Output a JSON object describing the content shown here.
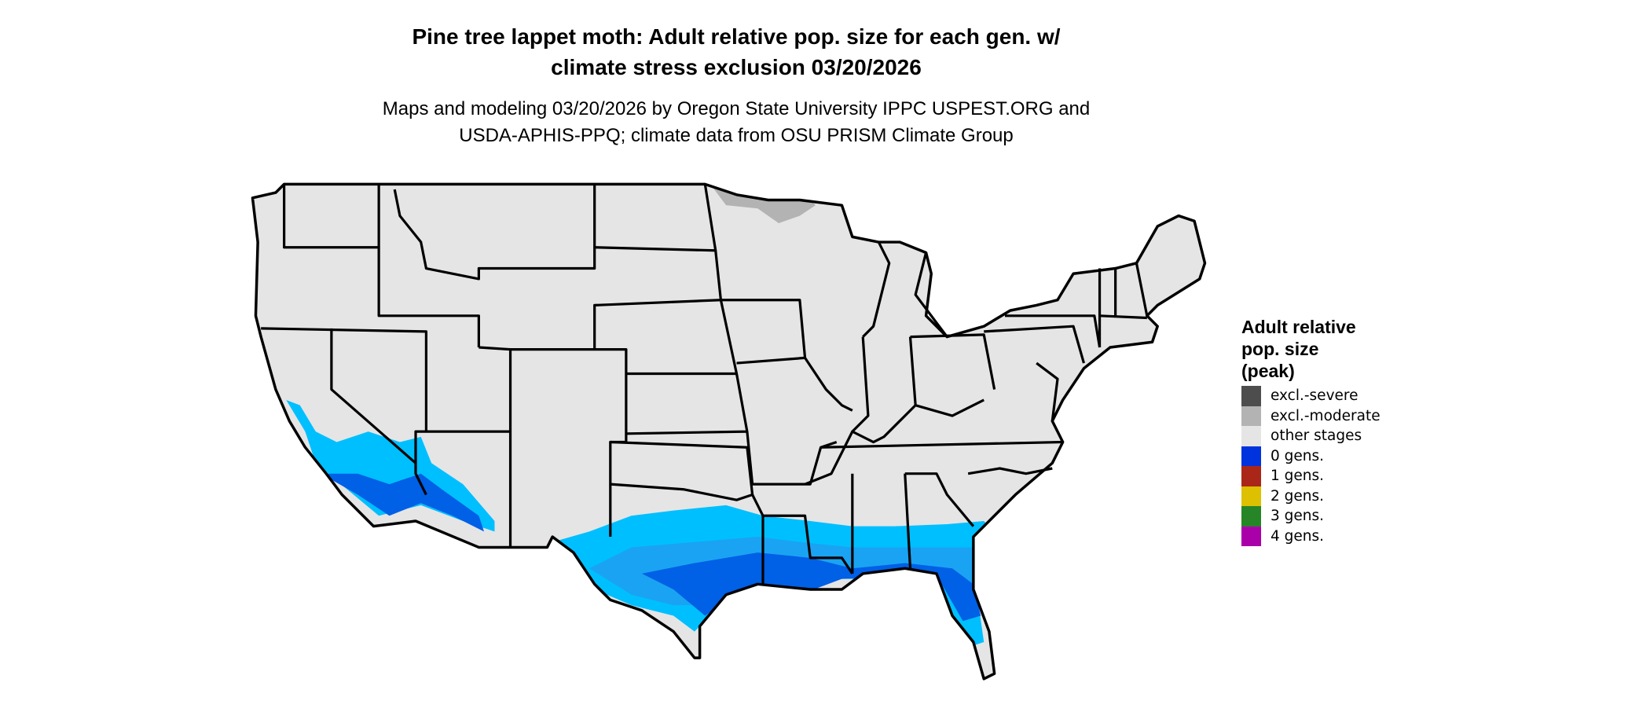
{
  "title": {
    "line1": "Pine tree lappet moth: Adult relative pop. size for each gen. w/",
    "line2": "climate stress exclusion 03/20/2026"
  },
  "subtitle": {
    "line1": "Maps and modeling 03/20/2026 by Oregon State University IPPC USPEST.ORG and",
    "line2": "USDA-APHIS-PPQ; climate data from OSU PRISM Climate Group"
  },
  "legend": {
    "title": [
      "Adult relative",
      "pop. size",
      "(peak)"
    ],
    "items": [
      {
        "label": "excl.-severe",
        "color": "#4D4D4D"
      },
      {
        "label": "excl.-moderate",
        "color": "#B3B3B3"
      },
      {
        "label": "other stages",
        "color": "#E5E5E5"
      },
      {
        "label": "0 gens.",
        "color": "#0033DD"
      },
      {
        "label": "1 gens.",
        "color": "#AA2618"
      },
      {
        "label": "2 gens.",
        "color": "#DDC000"
      },
      {
        "label": "3 gens.",
        "color": "#268526"
      },
      {
        "label": "4 gens.",
        "color": "#AA00AA"
      }
    ]
  },
  "map_colors": {
    "land": "#E5E5E5",
    "zero_gen_light": "#00BFFF",
    "zero_gen_mid": "#1AA3F2",
    "zero_gen_dark": "#0060E6",
    "excl_moderate": "#B3B3B3"
  }
}
